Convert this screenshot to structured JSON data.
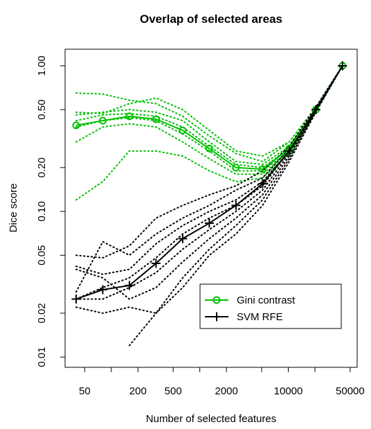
{
  "chart_data": {
    "type": "line",
    "title": "Overlap of selected areas",
    "xlabel": "Number of selected features",
    "ylabel": "Dice score",
    "x_scale": "log",
    "y_scale": "log",
    "xlim": [
      30,
      60000
    ],
    "ylim": [
      0.0085,
      1.3
    ],
    "x_ticks": [
      50,
      200,
      500,
      2000,
      10000,
      50000
    ],
    "x_tick_labels": [
      "50",
      "200",
      "500",
      "2000",
      "10000",
      "50000"
    ],
    "x_minor_ticks": [
      100,
      1000,
      5000,
      20000
    ],
    "y_ticks": [
      0.01,
      0.02,
      0.05,
      0.1,
      0.2,
      0.5,
      1.0
    ],
    "y_tick_labels": [
      "0.01",
      "0.02",
      "0.05",
      "0.10",
      "0.20",
      "0.50",
      "1.00"
    ],
    "grid": false,
    "legend": {
      "position": "bottom-right",
      "entries": [
        "Gini contrast",
        "SVM RFE"
      ]
    },
    "x": [
      40,
      80,
      160,
      320,
      640,
      1280,
      2560,
      5120,
      10240,
      20480,
      40960
    ],
    "series": [
      {
        "name": "Gini contrast",
        "color": "#00c000",
        "marker": "circle",
        "values": [
          0.39,
          0.42,
          0.45,
          0.43,
          0.36,
          0.27,
          0.2,
          0.195,
          0.27,
          0.5,
          1.0
        ]
      },
      {
        "name": "SVM RFE",
        "color": "#000000",
        "marker": "plus",
        "values": [
          0.025,
          0.029,
          0.031,
          0.044,
          0.065,
          0.083,
          0.11,
          0.155,
          0.26,
          0.5,
          1.0
        ]
      }
    ],
    "individual_runs": [
      {
        "group": "Gini contrast",
        "color": "#00c000",
        "values": [
          0.65,
          0.64,
          0.58,
          0.55,
          0.45,
          0.33,
          0.25,
          0.22,
          0.3,
          0.52,
          1.0
        ]
      },
      {
        "group": "Gini contrast",
        "color": "#00c000",
        "values": [
          0.48,
          0.47,
          0.55,
          0.6,
          0.5,
          0.36,
          0.26,
          0.24,
          0.3,
          0.52,
          1.0
        ]
      },
      {
        "group": "Gini contrast",
        "color": "#00c000",
        "values": [
          0.46,
          0.48,
          0.5,
          0.48,
          0.42,
          0.3,
          0.22,
          0.21,
          0.28,
          0.5,
          1.0
        ]
      },
      {
        "group": "Gini contrast",
        "color": "#00c000",
        "values": [
          0.42,
          0.46,
          0.47,
          0.45,
          0.38,
          0.28,
          0.21,
          0.2,
          0.27,
          0.5,
          1.0
        ]
      },
      {
        "group": "Gini contrast",
        "color": "#00c000",
        "values": [
          0.38,
          0.42,
          0.44,
          0.42,
          0.34,
          0.26,
          0.19,
          0.19,
          0.26,
          0.5,
          1.0
        ]
      },
      {
        "group": "Gini contrast",
        "color": "#00c000",
        "values": [
          0.3,
          0.38,
          0.4,
          0.38,
          0.3,
          0.23,
          0.18,
          0.18,
          0.26,
          0.49,
          1.0
        ]
      },
      {
        "group": "Gini contrast",
        "color": "#00c000",
        "values": [
          0.12,
          0.16,
          0.26,
          0.26,
          0.24,
          0.19,
          0.16,
          0.17,
          0.25,
          0.49,
          1.0
        ]
      },
      {
        "group": "SVM RFE",
        "color": "#000000",
        "values": [
          0.05,
          0.048,
          0.058,
          0.09,
          0.11,
          0.13,
          0.15,
          0.19,
          0.28,
          0.52,
          1.0
        ]
      },
      {
        "group": "SVM RFE",
        "color": "#000000",
        "values": [
          0.028,
          0.062,
          0.05,
          0.07,
          0.09,
          0.11,
          0.14,
          0.17,
          0.27,
          0.51,
          1.0
        ]
      },
      {
        "group": "SVM RFE",
        "color": "#000000",
        "values": [
          0.042,
          0.037,
          0.04,
          0.06,
          0.08,
          0.1,
          0.12,
          0.16,
          0.26,
          0.5,
          1.0
        ]
      },
      {
        "group": "SVM RFE",
        "color": "#000000",
        "values": [
          0.025,
          0.03,
          0.035,
          0.048,
          0.07,
          0.09,
          0.11,
          0.15,
          0.26,
          0.5,
          1.0
        ]
      },
      {
        "group": "SVM RFE",
        "color": "#000000",
        "values": [
          0.025,
          0.025,
          0.03,
          0.038,
          0.055,
          0.075,
          0.1,
          0.14,
          0.25,
          0.5,
          1.0
        ]
      },
      {
        "group": "SVM RFE",
        "color": "#000000",
        "values": [
          0.04,
          0.035,
          0.025,
          0.03,
          0.045,
          0.065,
          0.09,
          0.13,
          0.24,
          0.49,
          1.0
        ]
      },
      {
        "group": "SVM RFE",
        "color": "#000000",
        "values": [
          0.022,
          0.02,
          0.022,
          0.02,
          0.035,
          0.055,
          0.08,
          0.12,
          0.23,
          0.49,
          1.0
        ]
      },
      {
        "group": "SVM RFE",
        "color": "#000000",
        "values": [
          null,
          null,
          0.012,
          0.02,
          0.03,
          0.05,
          0.07,
          0.11,
          0.22,
          0.48,
          1.0
        ]
      }
    ]
  }
}
